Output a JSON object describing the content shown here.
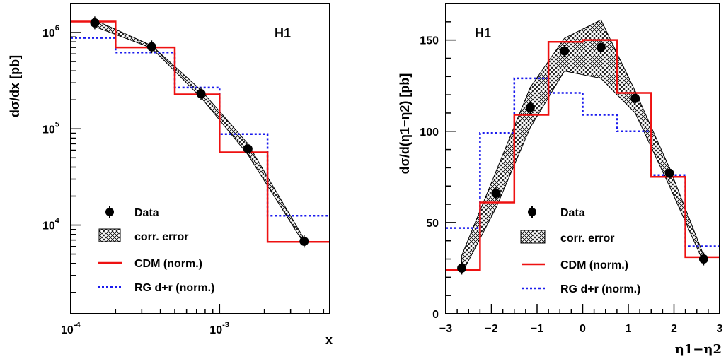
{
  "chart_data": [
    {
      "type": "line",
      "experiment_label": "H1",
      "xlabel": "x",
      "ylabel": "dσ/dx [pb]",
      "xscale": "log",
      "yscale": "log",
      "xlim": [
        0.0001,
        0.0055
      ],
      "ylim": [
        1200,
        2000000
      ],
      "x_tick_labels": [
        "10",
        "10"
      ],
      "x_tick_exponents": [
        "-4",
        "-3"
      ],
      "y_tick_labels": [
        "10",
        "10",
        "10"
      ],
      "y_tick_exponents": [
        "4",
        "5",
        "6"
      ],
      "legend": [
        "Data",
        "corr. error",
        "CDM (norm.)",
        "RG d+r (norm.)"
      ],
      "legend_placement": "bottom-left",
      "data": {
        "x": [
          0.000145,
          0.00035,
          0.00075,
          0.00155,
          0.0037
        ],
        "y": [
          1260000,
          710000,
          232000,
          62000,
          6800
        ]
      },
      "corr_error_band": {
        "x": [
          0.000145,
          0.00035,
          0.00075,
          0.00155,
          0.0037
        ],
        "low": [
          1150000,
          690000,
          212000,
          54000,
          6400
        ],
        "high": [
          1350000,
          730000,
          252000,
          70000,
          7200
        ]
      },
      "cdm": {
        "edges": [
          0.0001,
          0.0002,
          0.0005,
          0.001,
          0.0021,
          0.0055
        ],
        "values": [
          1300000,
          700000,
          228000,
          57000,
          6700
        ]
      },
      "rg": {
        "edges": [
          0.0001,
          0.0002,
          0.0005,
          0.001,
          0.0021,
          0.0055
        ],
        "values": [
          880000,
          620000,
          268000,
          88000,
          12500
        ]
      },
      "colors": {
        "data": "#000000",
        "cdm": "#ee1111",
        "rg": "#1a1aee"
      }
    },
    {
      "type": "line",
      "experiment_label": "H1",
      "xlabel": "η1−η2",
      "ylabel": "dσ/d(η1−η2) [pb]",
      "xlim": [
        -3,
        3
      ],
      "ylim": [
        0,
        170
      ],
      "x_ticks": [
        -3,
        -2,
        -1,
        0,
        1,
        2,
        3
      ],
      "x_tick_labels": [
        "−3",
        "−2",
        "−1",
        "0",
        "1",
        "2",
        "3"
      ],
      "y_ticks": [
        0,
        50,
        100,
        150
      ],
      "y_tick_labels": [
        "0",
        "50",
        "100",
        "150"
      ],
      "legend": [
        "Data",
        "corr. error",
        "CDM (norm.)",
        "RG d+r (norm.)"
      ],
      "legend_placement": "bottom-center",
      "data": {
        "x": [
          -2.65,
          -1.9,
          -1.15,
          -0.4,
          0.4,
          1.15,
          1.9,
          2.65
        ],
        "y": [
          25,
          66,
          113,
          144,
          146,
          118,
          77,
          30
        ]
      },
      "corr_error_band": {
        "x": [
          -2.65,
          -1.9,
          -1.15,
          -0.4,
          0.4,
          1.15,
          1.9,
          2.65
        ],
        "low": [
          22,
          58,
          102,
          133,
          129,
          110,
          70,
          28
        ],
        "high": [
          32,
          78,
          124,
          151,
          161,
          122,
          80,
          32
        ]
      },
      "cdm": {
        "edges": [
          -3,
          -2.25,
          -1.5,
          -0.75,
          0,
          0.75,
          1.5,
          2.25,
          3
        ],
        "values": [
          24,
          61,
          109,
          149,
          150,
          121,
          75,
          31
        ]
      },
      "rg": {
        "edges": [
          -3,
          -2.25,
          -1.5,
          -0.75,
          0,
          0.75,
          1.5,
          2.25,
          3
        ],
        "values": [
          47,
          99,
          129,
          121,
          109,
          100,
          76,
          37
        ]
      },
      "colors": {
        "data": "#000000",
        "cdm": "#ee1111",
        "rg": "#1a1aee"
      }
    }
  ]
}
